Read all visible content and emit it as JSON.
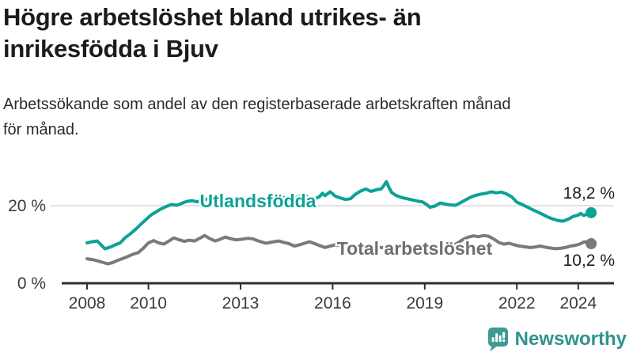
{
  "header": {
    "title": "Högre arbetslöshet bland utrikes- än inrikesfödda i Bjuv",
    "title_lines": [
      "Högre arbetslöshet bland utrikes- än",
      "inrikesfödda i Bjuv"
    ],
    "subtitle": "Arbetssökande som andel av den registerbaserade arbetskraften månad för månad.",
    "subtitle_lines": [
      "Arbetssökande som andel av den registerbaserade arbetskraften månad",
      "för månad."
    ]
  },
  "chart_data": {
    "type": "line",
    "title": "Högre arbetslöshet bland utrikes- än inrikesfödda i Bjuv",
    "subtitle": "Arbetssökande som andel av den registerbaserade arbetskraften månad för månad.",
    "unit": "%",
    "xlim": [
      2007.9,
      2024.9
    ],
    "ylim": [
      0,
      30
    ],
    "x_ticks": [
      2008,
      2010,
      2013,
      2016,
      2019,
      2022,
      2024
    ],
    "y_ticks": [
      {
        "value": 0,
        "label": "0 %"
      },
      {
        "value": 20,
        "label": "20 %"
      }
    ],
    "grid": "horizontal gridline at 20% only",
    "legend_position": "inline series labels on lines",
    "series": [
      {
        "name": "Utlandsfödda",
        "color": "#0ca295",
        "label_color": "#0ca295",
        "end_label": "18,2 %",
        "end_value": 18.2,
        "points": [
          [
            2008.0,
            10.4
          ],
          [
            2008.17,
            10.7
          ],
          [
            2008.33,
            10.9
          ],
          [
            2008.42,
            10.2
          ],
          [
            2008.58,
            8.9
          ],
          [
            2008.75,
            9.3
          ],
          [
            2008.92,
            9.9
          ],
          [
            2009.08,
            10.4
          ],
          [
            2009.25,
            11.8
          ],
          [
            2009.42,
            12.8
          ],
          [
            2009.58,
            13.9
          ],
          [
            2009.75,
            15.2
          ],
          [
            2009.92,
            16.4
          ],
          [
            2010.08,
            17.6
          ],
          [
            2010.25,
            18.4
          ],
          [
            2010.42,
            19.2
          ],
          [
            2010.58,
            19.8
          ],
          [
            2010.75,
            20.3
          ],
          [
            2010.92,
            20.1
          ],
          [
            2011.08,
            20.6
          ],
          [
            2011.25,
            21.1
          ],
          [
            2011.42,
            21.3
          ],
          [
            2011.58,
            21.0
          ],
          [
            2011.75,
            21.4
          ],
          [
            2011.92,
            21.7
          ],
          [
            2012.08,
            21.9
          ],
          [
            2012.25,
            22.3
          ],
          [
            2012.42,
            21.8
          ],
          [
            2012.58,
            22.0
          ],
          [
            2012.75,
            21.6
          ],
          [
            2012.92,
            21.9
          ],
          [
            2013.08,
            21.6
          ],
          [
            2013.25,
            22.1
          ],
          [
            2013.42,
            21.8
          ],
          [
            2013.58,
            22.0
          ],
          [
            2013.75,
            21.7
          ],
          [
            2013.92,
            22.0
          ],
          [
            2014.08,
            22.2
          ],
          [
            2014.25,
            21.9
          ],
          [
            2014.42,
            22.1
          ],
          [
            2014.58,
            21.8
          ],
          [
            2014.75,
            22.0
          ],
          [
            2014.92,
            22.4
          ],
          [
            2015.08,
            22.6
          ],
          [
            2015.25,
            22.1
          ],
          [
            2015.42,
            21.7
          ],
          [
            2015.58,
            22.4
          ],
          [
            2015.67,
            23.2
          ],
          [
            2015.75,
            22.6
          ],
          [
            2015.92,
            23.6
          ],
          [
            2016.08,
            22.5
          ],
          [
            2016.25,
            22.0
          ],
          [
            2016.42,
            21.6
          ],
          [
            2016.58,
            21.8
          ],
          [
            2016.75,
            23.0
          ],
          [
            2016.92,
            23.8
          ],
          [
            2017.08,
            24.3
          ],
          [
            2017.25,
            23.7
          ],
          [
            2017.42,
            24.1
          ],
          [
            2017.58,
            24.3
          ],
          [
            2017.67,
            25.2
          ],
          [
            2017.75,
            26.2
          ],
          [
            2017.83,
            24.8
          ],
          [
            2017.92,
            23.4
          ],
          [
            2018.08,
            22.6
          ],
          [
            2018.25,
            22.1
          ],
          [
            2018.42,
            21.8
          ],
          [
            2018.58,
            21.5
          ],
          [
            2018.75,
            21.2
          ],
          [
            2018.92,
            21.0
          ],
          [
            2019.08,
            20.2
          ],
          [
            2019.17,
            19.6
          ],
          [
            2019.33,
            19.9
          ],
          [
            2019.5,
            20.7
          ],
          [
            2019.67,
            20.4
          ],
          [
            2019.83,
            20.2
          ],
          [
            2020.0,
            20.1
          ],
          [
            2020.17,
            20.8
          ],
          [
            2020.33,
            21.5
          ],
          [
            2020.5,
            22.2
          ],
          [
            2020.67,
            22.7
          ],
          [
            2020.83,
            23.0
          ],
          [
            2021.0,
            23.2
          ],
          [
            2021.17,
            23.6
          ],
          [
            2021.33,
            23.3
          ],
          [
            2021.5,
            23.5
          ],
          [
            2021.67,
            23.0
          ],
          [
            2021.83,
            22.3
          ],
          [
            2022.0,
            20.9
          ],
          [
            2022.17,
            20.3
          ],
          [
            2022.33,
            19.7
          ],
          [
            2022.5,
            19.0
          ],
          [
            2022.67,
            18.4
          ],
          [
            2022.83,
            17.8
          ],
          [
            2023.0,
            17.1
          ],
          [
            2023.17,
            16.6
          ],
          [
            2023.33,
            16.2
          ],
          [
            2023.5,
            16.0
          ],
          [
            2023.67,
            16.5
          ],
          [
            2023.83,
            17.2
          ],
          [
            2024.0,
            17.6
          ],
          [
            2024.08,
            18.0
          ],
          [
            2024.17,
            17.5
          ],
          [
            2024.25,
            17.7
          ],
          [
            2024.33,
            18.0
          ],
          [
            2024.42,
            18.2
          ]
        ]
      },
      {
        "name": "Total arbetslöshet",
        "color": "#7a7a7a",
        "label_color": "#6f6f6f",
        "end_label": "10,2 %",
        "end_value": 10.2,
        "points": [
          [
            2008.0,
            6.3
          ],
          [
            2008.17,
            6.1
          ],
          [
            2008.33,
            5.8
          ],
          [
            2008.5,
            5.4
          ],
          [
            2008.67,
            5.0
          ],
          [
            2008.83,
            5.3
          ],
          [
            2009.0,
            5.9
          ],
          [
            2009.17,
            6.4
          ],
          [
            2009.33,
            6.9
          ],
          [
            2009.5,
            7.5
          ],
          [
            2009.67,
            7.9
          ],
          [
            2009.83,
            9.0
          ],
          [
            2010.0,
            10.4
          ],
          [
            2010.17,
            11.0
          ],
          [
            2010.33,
            10.4
          ],
          [
            2010.5,
            10.1
          ],
          [
            2010.67,
            10.9
          ],
          [
            2010.83,
            11.7
          ],
          [
            2011.0,
            11.2
          ],
          [
            2011.17,
            10.8
          ],
          [
            2011.33,
            11.1
          ],
          [
            2011.5,
            10.9
          ],
          [
            2011.67,
            11.6
          ],
          [
            2011.83,
            12.3
          ],
          [
            2012.0,
            11.5
          ],
          [
            2012.17,
            10.9
          ],
          [
            2012.33,
            11.3
          ],
          [
            2012.5,
            11.9
          ],
          [
            2012.67,
            11.5
          ],
          [
            2012.83,
            11.2
          ],
          [
            2013.0,
            11.3
          ],
          [
            2013.25,
            11.6
          ],
          [
            2013.42,
            11.4
          ],
          [
            2013.58,
            10.9
          ],
          [
            2013.83,
            10.3
          ],
          [
            2014.0,
            10.6
          ],
          [
            2014.25,
            10.9
          ],
          [
            2014.42,
            10.5
          ],
          [
            2014.58,
            10.2
          ],
          [
            2014.75,
            9.6
          ],
          [
            2014.92,
            9.9
          ],
          [
            2015.08,
            10.3
          ],
          [
            2015.25,
            10.7
          ],
          [
            2015.42,
            10.2
          ],
          [
            2015.58,
            9.7
          ],
          [
            2015.75,
            9.2
          ],
          [
            2015.92,
            9.6
          ],
          [
            2016.08,
            9.9
          ],
          [
            2016.25,
            9.7
          ],
          [
            2016.42,
            9.2
          ],
          [
            2016.58,
            9.0
          ],
          [
            2016.75,
            9.5
          ],
          [
            2016.92,
            9.3
          ],
          [
            2017.08,
            9.6
          ],
          [
            2017.25,
            9.8
          ],
          [
            2017.42,
            9.5
          ],
          [
            2017.58,
            9.2
          ],
          [
            2017.75,
            9.0
          ],
          [
            2017.92,
            9.4
          ],
          [
            2018.08,
            9.8
          ],
          [
            2018.25,
            9.6
          ],
          [
            2018.42,
            9.2
          ],
          [
            2018.58,
            9.0
          ],
          [
            2018.75,
            9.3
          ],
          [
            2018.92,
            9.5
          ],
          [
            2019.08,
            9.4
          ],
          [
            2019.25,
            9.6
          ],
          [
            2019.42,
            9.3
          ],
          [
            2019.58,
            9.1
          ],
          [
            2019.75,
            9.4
          ],
          [
            2019.92,
            9.7
          ],
          [
            2020.08,
            10.4
          ],
          [
            2020.25,
            11.3
          ],
          [
            2020.42,
            11.9
          ],
          [
            2020.58,
            12.2
          ],
          [
            2020.75,
            12.0
          ],
          [
            2020.92,
            12.3
          ],
          [
            2021.08,
            12.1
          ],
          [
            2021.25,
            11.4
          ],
          [
            2021.42,
            10.5
          ],
          [
            2021.58,
            10.1
          ],
          [
            2021.75,
            10.3
          ],
          [
            2021.92,
            9.9
          ],
          [
            2022.08,
            9.6
          ],
          [
            2022.25,
            9.4
          ],
          [
            2022.42,
            9.2
          ],
          [
            2022.58,
            9.3
          ],
          [
            2022.75,
            9.6
          ],
          [
            2022.92,
            9.3
          ],
          [
            2023.08,
            9.1
          ],
          [
            2023.25,
            8.9
          ],
          [
            2023.42,
            9.0
          ],
          [
            2023.58,
            9.2
          ],
          [
            2023.75,
            9.6
          ],
          [
            2023.92,
            9.8
          ],
          [
            2024.08,
            10.2
          ],
          [
            2024.17,
            10.6
          ],
          [
            2024.25,
            10.7
          ],
          [
            2024.33,
            10.5
          ],
          [
            2024.42,
            10.2
          ]
        ]
      }
    ]
  },
  "footer": {
    "brand": "Newsworthy"
  },
  "colors": {
    "accent_teal": "#0ca295",
    "line_gray": "#7a7a7a",
    "logo_teal": "#3f9a92",
    "brand_text": "#2e938c",
    "grid": "#d8d8d8",
    "axis": "#2f2f2f",
    "tick_text": "#3b3b3b",
    "value_text": "#1d1d1d"
  }
}
